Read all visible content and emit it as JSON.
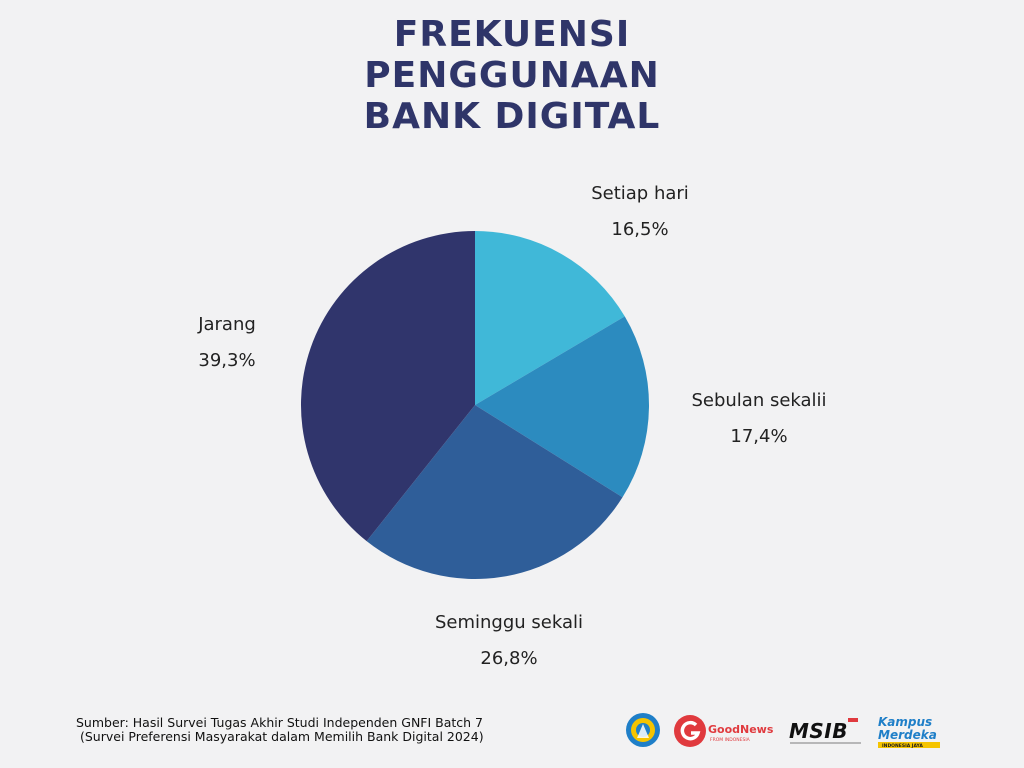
{
  "title_lines": [
    "FREKUENSI",
    "PENGGUNAAN",
    "BANK DIGITAL"
  ],
  "chart_data": {
    "type": "pie",
    "title": "FREKUENSI PENGGUNAAN BANK DIGITAL",
    "slices": [
      {
        "label": "Setiap hari",
        "value": 16.5,
        "display": "16,5%",
        "color": "#40b8d8"
      },
      {
        "label": "Sebulan sekalii",
        "value": 17.4,
        "display": "17,4%",
        "color": "#2c8bbf"
      },
      {
        "label": "Seminggu sekali",
        "value": 26.8,
        "display": "26,8%",
        "color": "#2f5e99"
      },
      {
        "label": "Jarang",
        "value": 39.3,
        "display": "39,3%",
        "color": "#30356c"
      }
    ],
    "start_angle_deg": 0,
    "direction": "clockwise"
  },
  "footer": {
    "line1": "Sumber: Hasil Survei Tugas Akhir Studi Independen GNFI Batch 7",
    "line2": "(Survei Preferensi Masyarakat dalam Memilih Bank Digital 2024)"
  },
  "logos": {
    "goodnews": "GoodNews",
    "goodnews_sub": "FROM INDONESIA",
    "msib": "MSIB",
    "kampus_line1": "Kampus",
    "kampus_line2": "Merdeka",
    "kampus_sub": "INDONESIA JAYA"
  },
  "colors": {
    "title": "#2f3569",
    "background": "#f2f2f3"
  }
}
